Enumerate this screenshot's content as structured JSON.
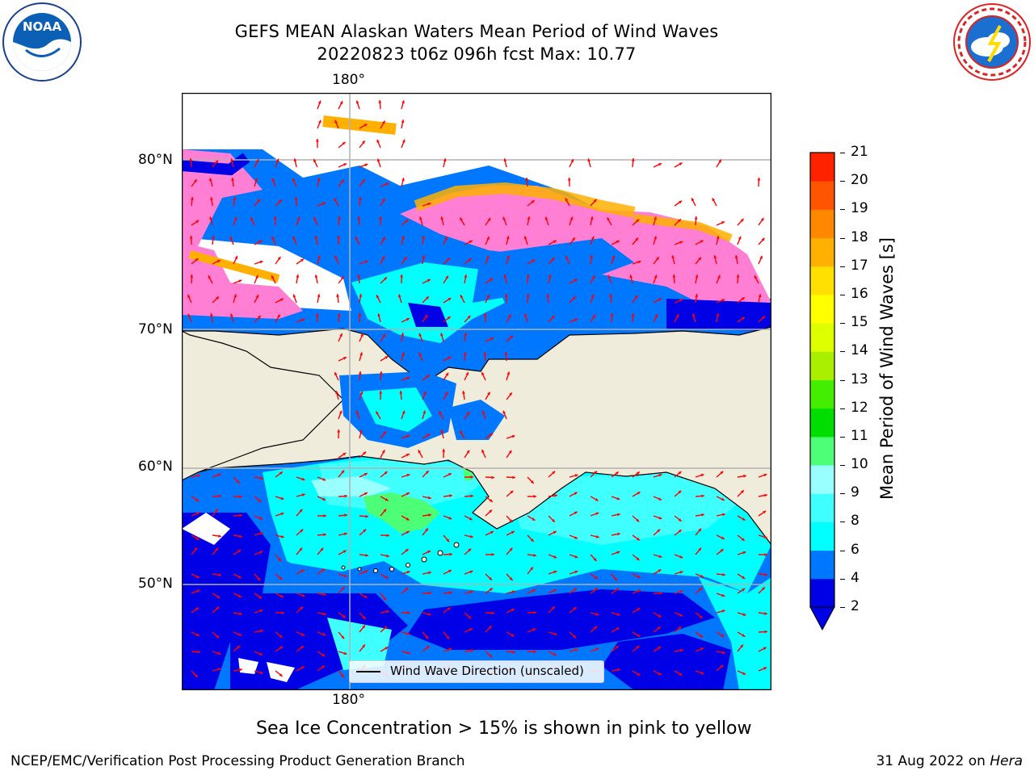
{
  "header": {
    "title_line1": "GEFS MEAN Alaskan Waters Mean Period of Wind Waves",
    "title_line2": "20220823 t06z 096h fcst   Max: 10.77"
  },
  "logos": {
    "noaa_text": "NOAA",
    "noaa_ring": "NATIONAL OCEANIC AND ATMOSPHERIC ADMINISTRATION · U.S. DEPARTMENT OF COMMERCE",
    "nws_ring": "NATIONAL WEATHER SERVICE"
  },
  "map": {
    "top_lon_label": "180°",
    "bottom_lon_label": "180°",
    "lat_labels": [
      "80°N",
      "70°N",
      "60°N",
      "50°N"
    ],
    "legend_label": "Wind Wave Direction (unscaled)",
    "land_color": "#efecdc",
    "arrow_color": "#ff0000",
    "grid_color": "#b0b0b0"
  },
  "colorbar": {
    "title": "Mean Period of Wind Waves [s]",
    "ticks": [
      "2",
      "4",
      "6",
      "8",
      "9",
      "10",
      "11",
      "12",
      "13",
      "14",
      "15",
      "16",
      "17",
      "18",
      "19",
      "20",
      "21"
    ],
    "colors": [
      "#0000e6",
      "#0077ff",
      "#00ffff",
      "#40ffff",
      "#99ffff",
      "#4dff77",
      "#00dd00",
      "#44ee00",
      "#aaee00",
      "#ddff00",
      "#ffff00",
      "#ffe000",
      "#ffb000",
      "#ff8800",
      "#ff5500",
      "#ff2200",
      "#ff0000"
    ]
  },
  "notes": {
    "sea_ice": "Sea Ice Concentration > 15% is shown in pink to yellow"
  },
  "footer": {
    "left": "NCEP/EMC/Verification Post Processing Product Generation Branch",
    "right_date": "31 Aug 2022 on ",
    "right_machine": "Hera"
  }
}
